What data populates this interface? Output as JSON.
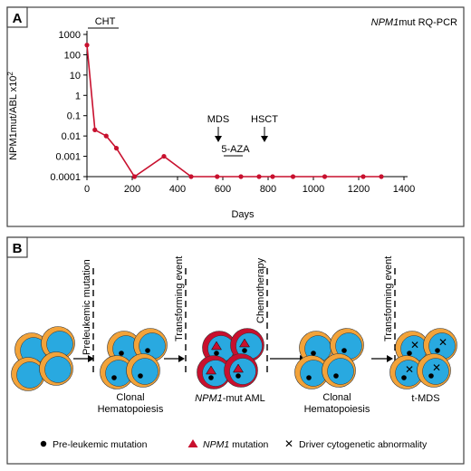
{
  "panel_a": {
    "letter": "A",
    "title_italic": "NPM1",
    "title_rest": "mut RQ-PCR",
    "ylabel": "NPM1mut/ABL x10",
    "ylabel_sup": "2",
    "xlabel": "Days",
    "annotations": {
      "cht": "CHT",
      "mds": "MDS",
      "hsct": "HSCT",
      "aza": "5-AZA"
    },
    "colors": {
      "line": "#c8102e",
      "axis": "#000000"
    }
  },
  "chart_data": {
    "type": "line",
    "xlabel": "Days",
    "ylabel": "NPM1mut/ABL x10^2",
    "yscale": "log",
    "xlim": [
      0,
      1400
    ],
    "ylim": [
      0.0001,
      1000
    ],
    "x_ticks": [
      "0",
      "200",
      "400",
      "600",
      "800",
      "1000",
      "1200",
      "1400"
    ],
    "y_ticks": [
      "1000",
      "100",
      "10",
      "1",
      "0.1",
      "0.01",
      "0.001",
      "0.0001"
    ],
    "series": [
      {
        "x": [
          0,
          35,
          85,
          130,
          210,
          340,
          460,
          575,
          680,
          760,
          820,
          910,
          1050,
          1220,
          1300
        ],
        "y": [
          300,
          0.02,
          0.01,
          0.0025,
          0.0001,
          0.001,
          0.0001,
          0.0001,
          0.0001,
          0.0001,
          0.0001,
          0.0001,
          0.0001,
          0.0001,
          0.0001
        ]
      }
    ]
  },
  "panel_b": {
    "letter": "B",
    "event_labels": {
      "preleukemic": "Preleukemic mutation",
      "transforming1": "Transforming event",
      "chemotherapy": "Chemotherapy",
      "transforming2": "Transforming event"
    },
    "stage_labels": {
      "clonal1_l1": "Clonal",
      "clonal1_l2": "Hematopoiesis",
      "aml_italic": "NPM1",
      "aml_rest": "-mut AML",
      "clonal2_l1": "Clonal",
      "clonal2_l2": "Hematopoiesis",
      "tmds": "t-MDS"
    },
    "legend": {
      "preleukemic": "Pre-leukemic mutation",
      "npm1_italic": "NPM1",
      "npm1_rest": " mutation",
      "driver": "Driver cytogenetic abnormality"
    },
    "colors": {
      "cell_outer": "#f2a33a",
      "cell_inner": "#29a9e0",
      "aml_outer": "#c8102e",
      "triangle": "#c8102e"
    }
  }
}
